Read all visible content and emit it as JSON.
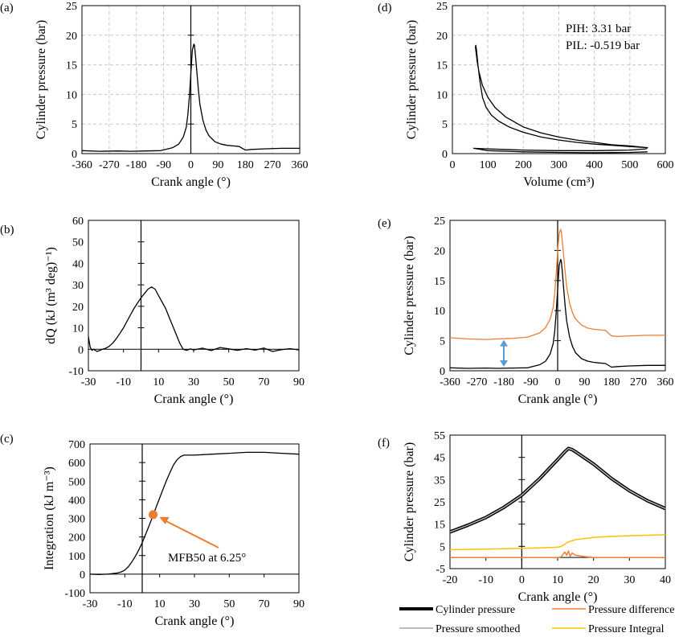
{
  "figure": {
    "panel_labels": [
      "(a)",
      "(b)",
      "(c)",
      "(d)",
      "(e)",
      "(f)"
    ]
  },
  "chart_data": [
    {
      "id": "a",
      "panel_label": "(a)",
      "type": "line",
      "xlabel": "Crank angle (°)",
      "ylabel": "Cylinder pressure (bar)",
      "xlim": [
        -360,
        360
      ],
      "ylim": [
        0,
        25
      ],
      "grid": true,
      "xticks": [
        -360,
        -270,
        -180,
        -90,
        0,
        90,
        180,
        270,
        360
      ],
      "yticks": [
        0,
        5,
        10,
        15,
        20,
        25
      ],
      "series": [
        {
          "color": "#000000",
          "x": [
            -360,
            -300,
            -240,
            -200,
            -150,
            -100,
            -60,
            -40,
            -25,
            -15,
            -10,
            -5,
            0,
            5,
            10,
            12,
            15,
            20,
            25,
            30,
            40,
            50,
            60,
            80,
            100,
            120,
            140,
            160,
            180,
            200,
            240,
            300,
            360
          ],
          "y": [
            0.5,
            0.4,
            0.45,
            0.4,
            0.45,
            0.5,
            1.0,
            1.6,
            2.8,
            4.5,
            6.5,
            9.5,
            13.5,
            17.5,
            18.5,
            18.3,
            16.8,
            13.8,
            10.8,
            8.3,
            5.6,
            4.0,
            3.0,
            2.0,
            1.6,
            1.4,
            1.3,
            1.2,
            0.6,
            0.7,
            0.8,
            0.9,
            0.9
          ]
        }
      ]
    },
    {
      "id": "b",
      "panel_label": "(b)",
      "type": "line",
      "xlabel": "Crank angle (°)",
      "ylabel": "dQ (kJ (m³ deg)⁻¹)",
      "xlim": [
        -30,
        90
      ],
      "ylim": [
        -10,
        60
      ],
      "grid": false,
      "xticks": [
        -30,
        -10,
        10,
        30,
        50,
        70,
        90
      ],
      "yticks": [
        -10,
        0,
        10,
        20,
        30,
        40,
        50,
        60
      ],
      "series": [
        {
          "color": "#000000",
          "x": [
            -30,
            -29,
            -28,
            -27,
            -25,
            -22,
            -20,
            -18,
            -16,
            -14,
            -12,
            -10,
            -8,
            -6,
            -4,
            -2,
            0,
            2,
            4,
            6,
            8,
            10,
            12,
            14,
            16,
            18,
            20,
            22,
            24,
            26,
            28,
            30,
            35,
            40,
            45,
            50,
            55,
            60,
            65,
            70,
            75,
            80,
            85,
            90
          ],
          "y": [
            6,
            1,
            -0.5,
            0,
            -1,
            0,
            0.5,
            1.5,
            3,
            5,
            7.5,
            10,
            13,
            16,
            19,
            21.5,
            24,
            26,
            28,
            29,
            28,
            25,
            22,
            19,
            15,
            11,
            7,
            3,
            0,
            -0.5,
            0.2,
            -0.3,
            0.5,
            -0.6,
            0.8,
            0.2,
            -0.5,
            0.3,
            -0.4,
            0.6,
            -1,
            -0.2,
            0.3,
            -0.3
          ]
        }
      ]
    },
    {
      "id": "c",
      "panel_label": "(c)",
      "type": "line",
      "xlabel": "Crank angle (°)",
      "ylabel": "Integration (kJ m⁻³)",
      "xlim": [
        -30,
        90
      ],
      "ylim": [
        -100,
        700
      ],
      "grid": false,
      "xticks": [
        -30,
        -10,
        10,
        30,
        50,
        70,
        90
      ],
      "yticks": [
        -100,
        0,
        100,
        200,
        300,
        400,
        500,
        600,
        700
      ],
      "series": [
        {
          "color": "#000000",
          "x": [
            -30,
            -25,
            -20,
            -15,
            -12,
            -10,
            -8,
            -6,
            -4,
            -2,
            0,
            2,
            4,
            6,
            8,
            10,
            12,
            14,
            16,
            18,
            20,
            22,
            24,
            26,
            30,
            40,
            50,
            60,
            70,
            80,
            90
          ],
          "y": [
            0,
            -2,
            0,
            5,
            12,
            22,
            40,
            65,
            95,
            130,
            170,
            215,
            262,
            310,
            360,
            410,
            458,
            505,
            548,
            588,
            615,
            632,
            640,
            640,
            640,
            645,
            650,
            655,
            655,
            650,
            645
          ]
        }
      ],
      "marker": {
        "x": 6.25,
        "y": 320,
        "color": "#ED7D31"
      },
      "annotation": {
        "text": "MFB50 at 6.25°",
        "color": "#ED7D31"
      }
    },
    {
      "id": "d",
      "panel_label": "(d)",
      "type": "line",
      "xlabel": "Volume (cm³)",
      "ylabel": "Cylinder pressure (bar)",
      "xlim": [
        0,
        600
      ],
      "ylim": [
        0,
        25
      ],
      "grid": true,
      "xticks": [
        0,
        100,
        200,
        300,
        400,
        500,
        600
      ],
      "yticks": [
        0,
        5,
        10,
        15,
        20,
        25
      ],
      "annotations": [
        "PIH: 3.31 bar",
        "PIL: -0.519 bar"
      ],
      "series": [
        {
          "color": "#000000",
          "x": [
            550,
            500,
            450,
            400,
            350,
            300,
            250,
            200,
            160,
            130,
            110,
            95,
            85,
            78,
            72,
            68,
            66,
            65,
            67,
            70,
            75,
            85,
            100,
            120,
            150,
            200,
            250,
            300,
            350,
            400,
            450,
            500,
            550,
            545,
            500,
            400,
            300,
            200,
            100,
            60,
            100,
            200,
            300,
            400,
            500,
            550
          ],
          "y": [
            1.0,
            1.2,
            1.4,
            1.6,
            1.9,
            2.3,
            2.8,
            3.6,
            4.5,
            5.5,
            6.5,
            7.8,
            9.5,
            12,
            15,
            17.5,
            18.3,
            18.0,
            17.0,
            15.5,
            13.8,
            11.5,
            9.5,
            7.8,
            6.2,
            4.5,
            3.5,
            2.8,
            2.3,
            1.9,
            1.5,
            1.3,
            1.0,
            0.8,
            0.6,
            0.5,
            0.5,
            0.6,
            0.8,
            0.9,
            0.5,
            0.3,
            0.2,
            0.15,
            0.2,
            0.3
          ]
        }
      ]
    },
    {
      "id": "e",
      "panel_label": "(e)",
      "type": "line",
      "xlabel": "Crank angle (°)",
      "ylabel": "Cylinder pressure (bar)",
      "xlim": [
        -360,
        360
      ],
      "ylim": [
        0,
        25
      ],
      "grid": false,
      "xticks": [
        -360,
        -270,
        -180,
        -90,
        0,
        90,
        180,
        270,
        360
      ],
      "yticks": [
        0,
        5,
        10,
        15,
        20,
        25
      ],
      "series": [
        {
          "color": "#000000",
          "x": [
            -360,
            -300,
            -240,
            -200,
            -150,
            -100,
            -60,
            -40,
            -25,
            -15,
            -10,
            -5,
            0,
            5,
            10,
            12,
            15,
            20,
            25,
            30,
            40,
            50,
            60,
            80,
            100,
            120,
            140,
            160,
            180,
            200,
            240,
            300,
            360
          ],
          "y": [
            0.5,
            0.4,
            0.45,
            0.4,
            0.45,
            0.5,
            1.0,
            1.6,
            2.8,
            4.5,
            6.5,
            9.5,
            13.5,
            17.5,
            18.5,
            18.3,
            16.8,
            13.8,
            10.8,
            8.3,
            5.6,
            4.0,
            3.0,
            2.0,
            1.6,
            1.4,
            1.3,
            1.2,
            0.6,
            0.7,
            0.8,
            0.9,
            0.9
          ]
        },
        {
          "color": "#ED7D31",
          "x": [
            -360,
            -300,
            -240,
            -200,
            -150,
            -100,
            -60,
            -40,
            -25,
            -15,
            -10,
            -5,
            0,
            5,
            10,
            12,
            15,
            20,
            25,
            30,
            40,
            50,
            60,
            80,
            100,
            120,
            140,
            160,
            180,
            200,
            240,
            300,
            360
          ],
          "y": [
            5.5,
            5.3,
            5.2,
            5.3,
            5.4,
            5.6,
            6.3,
            7.2,
            8.6,
            10.5,
            12.8,
            16,
            20,
            22.8,
            23.5,
            23.2,
            21.8,
            19.2,
            16.5,
            14,
            11.2,
            9.6,
            8.6,
            7.6,
            7.1,
            6.9,
            6.8,
            6.7,
            5.8,
            5.7,
            5.8,
            5.9,
            5.9
          ]
        }
      ],
      "double_arrow": {
        "x": -180,
        "y_from": 0.8,
        "y_to": 5.0,
        "color": "#5B9BD5"
      }
    },
    {
      "id": "f",
      "panel_label": "(f)",
      "type": "line",
      "xlabel": "Crank angle (°)",
      "ylabel": "Cylinder pressure (bar)",
      "xlim": [
        -20,
        40
      ],
      "ylim": [
        -5,
        55
      ],
      "grid": false,
      "xticks": [
        -20,
        -10,
        0,
        10,
        20,
        30,
        40
      ],
      "yticks": [
        -5,
        5,
        15,
        25,
        35,
        45,
        55
      ],
      "legend_placement": "bottom",
      "series": [
        {
          "name": "Cylinder pressure",
          "color": "#000000",
          "width": 3,
          "x": [
            -20,
            -15,
            -10,
            -5,
            0,
            5,
            10,
            12,
            13,
            14,
            15,
            20,
            25,
            30,
            35,
            40
          ],
          "y": [
            11.5,
            14.5,
            18,
            22.5,
            28,
            35.5,
            44,
            47.5,
            49,
            48.5,
            47.5,
            42,
            35.5,
            30,
            25.5,
            22
          ]
        },
        {
          "name": "Pressure difference",
          "color": "#ED7D31",
          "width": 1.5,
          "x": [
            -20,
            0,
            10,
            11,
            12,
            12.5,
            13,
            13.5,
            14,
            15,
            16,
            17,
            18,
            20,
            25,
            30,
            35,
            40
          ],
          "y": [
            0,
            0,
            0,
            0.3,
            2.5,
            1,
            3,
            0.5,
            2,
            1,
            0.8,
            0.5,
            0.3,
            0,
            0,
            0,
            0,
            0
          ]
        },
        {
          "name": "Pressure smoothed",
          "color": "#A6A6A6",
          "width": 1,
          "x": [
            -20,
            -15,
            -10,
            -5,
            0,
            5,
            10,
            12,
            13,
            14,
            15,
            20,
            25,
            30,
            35,
            40
          ],
          "y": [
            11.5,
            14.5,
            18,
            22.5,
            28,
            35.5,
            44,
            47.5,
            49,
            48.5,
            47.5,
            42,
            35.5,
            30,
            25.5,
            22
          ]
        },
        {
          "name": "Pressure Integral",
          "color": "#FFC000",
          "width": 1.5,
          "x": [
            -20,
            -10,
            0,
            5,
            10,
            11,
            12,
            13,
            15,
            20,
            25,
            30,
            35,
            40
          ],
          "y": [
            3.5,
            3.8,
            4.1,
            4.3,
            4.6,
            5.0,
            6.0,
            7.0,
            8.0,
            9.0,
            9.5,
            9.8,
            10,
            10.2
          ]
        }
      ]
    }
  ]
}
